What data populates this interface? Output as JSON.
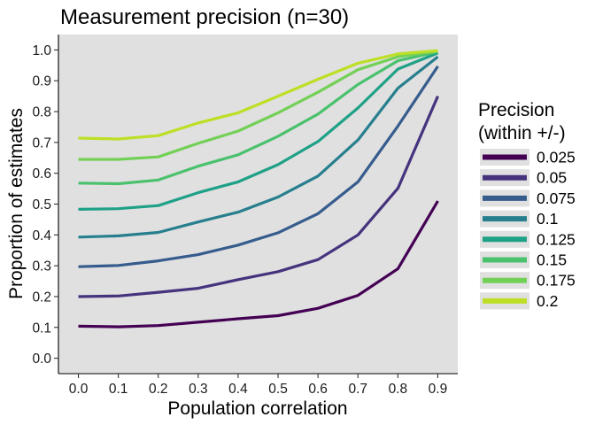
{
  "chart_data": {
    "type": "line",
    "title": "Measurement precision (n=30)",
    "xlabel": "Population correlation",
    "ylabel": "Proportion of estimates",
    "x": [
      0.0,
      0.1,
      0.2,
      0.3,
      0.4,
      0.5,
      0.6,
      0.7,
      0.8,
      0.9
    ],
    "x_ticks": [
      "0.0",
      "0.1",
      "0.2",
      "0.3",
      "0.4",
      "0.5",
      "0.6",
      "0.7",
      "0.8",
      "0.9"
    ],
    "y_ticks": [
      "0.0",
      "0.1",
      "0.2",
      "0.3",
      "0.4",
      "0.5",
      "0.6",
      "0.7",
      "0.8",
      "0.9",
      "1.0"
    ],
    "xlim": [
      -0.05,
      0.95
    ],
    "ylim": [
      -0.05,
      1.05
    ],
    "grid": false,
    "panel_background": "#e0e0e0",
    "legend": {
      "title_lines": [
        "Precision",
        "(within +/-)"
      ],
      "placement": "right"
    },
    "series": [
      {
        "name": "0.025",
        "color": "#440154",
        "values": [
          0.104,
          0.102,
          0.106,
          0.117,
          0.128,
          0.138,
          0.162,
          0.204,
          0.29,
          0.51
        ]
      },
      {
        "name": "0.05",
        "color": "#46337e",
        "values": [
          0.2,
          0.202,
          0.214,
          0.227,
          0.255,
          0.281,
          0.32,
          0.4,
          0.551,
          0.85
        ]
      },
      {
        "name": "0.075",
        "color": "#365c8d",
        "values": [
          0.297,
          0.301,
          0.316,
          0.336,
          0.367,
          0.407,
          0.469,
          0.572,
          0.753,
          0.947
        ]
      },
      {
        "name": "0.1",
        "color": "#277f8e",
        "values": [
          0.393,
          0.397,
          0.408,
          0.442,
          0.474,
          0.523,
          0.591,
          0.708,
          0.876,
          0.978
        ]
      },
      {
        "name": "0.125",
        "color": "#1fa187",
        "values": [
          0.483,
          0.485,
          0.495,
          0.537,
          0.572,
          0.628,
          0.703,
          0.812,
          0.938,
          0.99
        ]
      },
      {
        "name": "0.15",
        "color": "#4ac16d",
        "values": [
          0.568,
          0.566,
          0.578,
          0.623,
          0.66,
          0.72,
          0.792,
          0.888,
          0.965,
          0.994
        ]
      },
      {
        "name": "0.175",
        "color": "#73d056",
        "values": [
          0.645,
          0.645,
          0.653,
          0.697,
          0.737,
          0.796,
          0.863,
          0.936,
          0.978,
          0.996
        ]
      },
      {
        "name": "0.2",
        "color": "#bddf26",
        "values": [
          0.714,
          0.711,
          0.722,
          0.763,
          0.796,
          0.85,
          0.905,
          0.957,
          0.987,
          0.998
        ]
      }
    ]
  }
}
